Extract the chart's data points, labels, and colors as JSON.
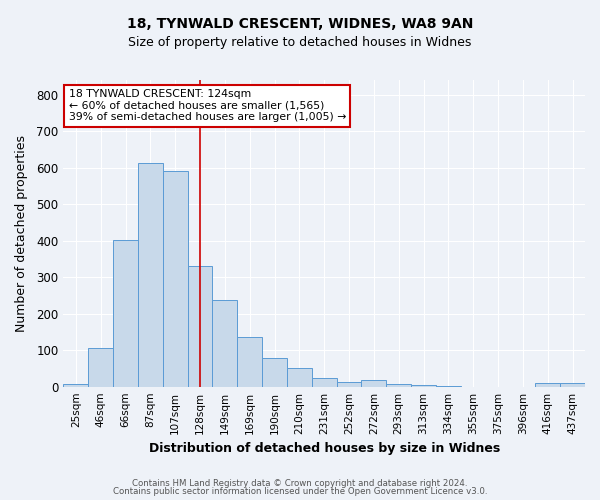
{
  "title1": "18, TYNWALD CRESCENT, WIDNES, WA8 9AN",
  "title2": "Size of property relative to detached houses in Widnes",
  "xlabel": "Distribution of detached houses by size in Widnes",
  "ylabel": "Number of detached properties",
  "bins": [
    "25sqm",
    "46sqm",
    "66sqm",
    "87sqm",
    "107sqm",
    "128sqm",
    "149sqm",
    "169sqm",
    "190sqm",
    "210sqm",
    "231sqm",
    "252sqm",
    "272sqm",
    "293sqm",
    "313sqm",
    "334sqm",
    "355sqm",
    "375sqm",
    "396sqm",
    "416sqm",
    "437sqm"
  ],
  "values": [
    7,
    106,
    403,
    612,
    592,
    330,
    237,
    135,
    79,
    51,
    25,
    14,
    17,
    8,
    4,
    2,
    0,
    0,
    0,
    9,
    10
  ],
  "bar_color": "#c8d9ea",
  "bar_edge_color": "#5b9bd5",
  "vline_x_index": 5,
  "vline_color": "#cc0000",
  "annotation_line1": "18 TYNWALD CRESCENT: 124sqm",
  "annotation_line2": "← 60% of detached houses are smaller (1,565)",
  "annotation_line3": "39% of semi-detached houses are larger (1,005) →",
  "annotation_box_color": "#ffffff",
  "annotation_box_edge_color": "#cc0000",
  "footer1": "Contains HM Land Registry data © Crown copyright and database right 2024.",
  "footer2": "Contains public sector information licensed under the Open Government Licence v3.0.",
  "ylim": [
    0,
    840
  ],
  "yticks": [
    0,
    100,
    200,
    300,
    400,
    500,
    600,
    700,
    800
  ],
  "bg_color": "#eef2f8",
  "plot_bg_color": "#eef2f8"
}
